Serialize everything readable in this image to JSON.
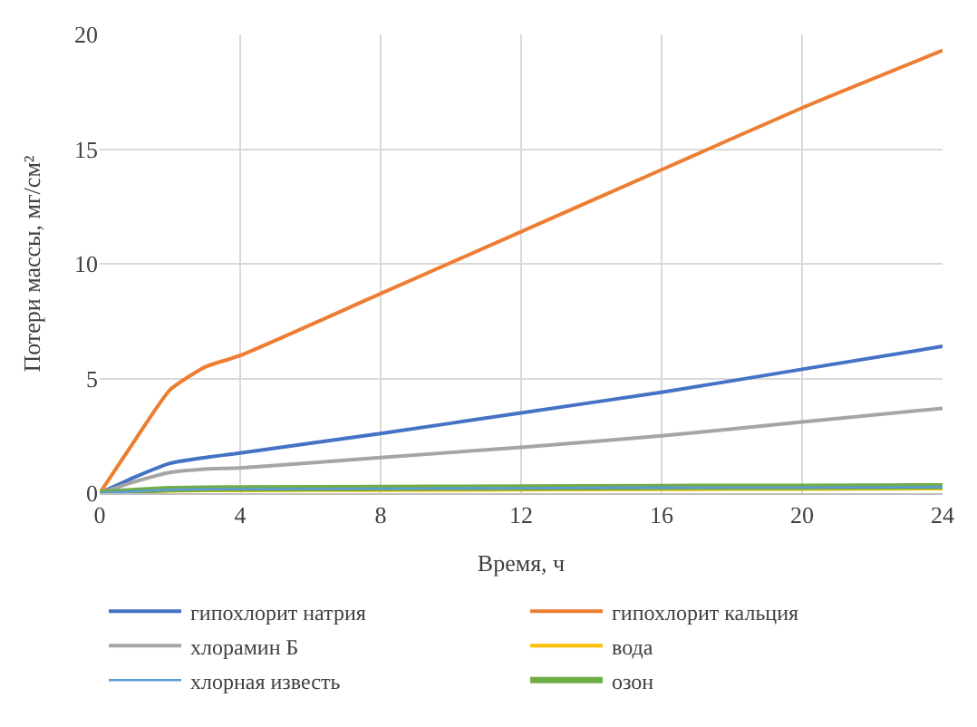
{
  "chart_data": {
    "type": "line",
    "xlabel": "Время, ч",
    "ylabel": "Потери массы, мг/см²",
    "x": [
      0,
      1,
      2,
      3,
      4,
      8,
      12,
      16,
      20,
      24
    ],
    "xlim": [
      0,
      24
    ],
    "xticks": [
      0,
      4,
      8,
      12,
      16,
      20,
      24
    ],
    "ylim": [
      0,
      20
    ],
    "yticks": [
      0,
      5,
      10,
      15,
      20
    ],
    "grid": true,
    "legend": "bottom",
    "marker": "none",
    "line_style": "solid",
    "series": [
      {
        "name": "гипохлорит натрия",
        "color": "#4472c4",
        "values": [
          0,
          0.7,
          1.3,
          1.55,
          1.75,
          2.6,
          3.5,
          4.4,
          5.4,
          6.4
        ]
      },
      {
        "name": "гипохлорит кальция",
        "color": "#ed7d31",
        "values": [
          0,
          2.3,
          4.5,
          5.5,
          6.0,
          8.7,
          11.4,
          14.1,
          16.8,
          19.3
        ]
      },
      {
        "name": "хлорамин Б",
        "color": "#a5a5a5",
        "values": [
          0,
          0.5,
          0.9,
          1.05,
          1.1,
          1.55,
          2.0,
          2.5,
          3.1,
          3.7
        ]
      },
      {
        "name": "вода",
        "color": "#ffc000",
        "values": [
          0,
          0.05,
          0.1,
          0.12,
          0.12,
          0.13,
          0.15,
          0.17,
          0.18,
          0.2
        ]
      },
      {
        "name": "хлорная известь",
        "color": "#5b9bd5",
        "values": [
          0,
          0.08,
          0.15,
          0.18,
          0.18,
          0.2,
          0.22,
          0.24,
          0.25,
          0.27
        ]
      },
      {
        "name": "озон",
        "color": "#70ad47",
        "values": [
          0,
          0.1,
          0.18,
          0.2,
          0.21,
          0.23,
          0.25,
          0.27,
          0.28,
          0.3
        ]
      }
    ]
  }
}
